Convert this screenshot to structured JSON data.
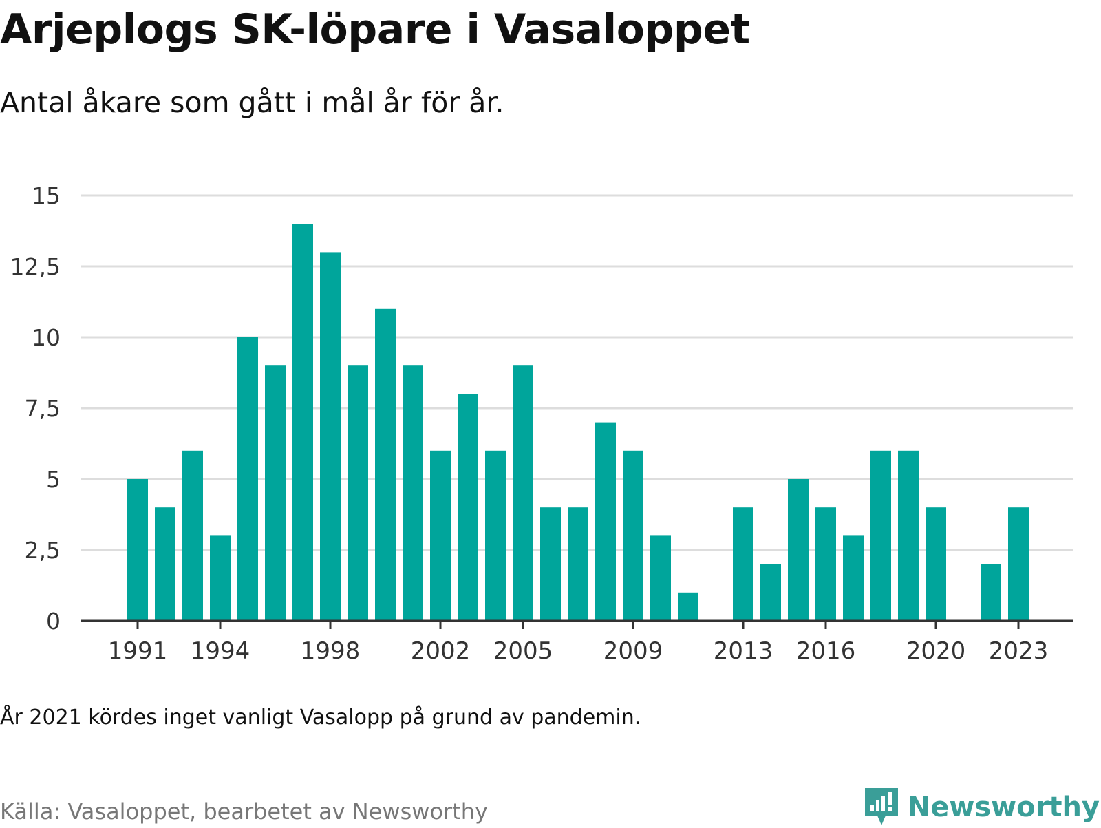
{
  "title": "Arjeplogs SK-löpare i Vasaloppet",
  "subtitle": "Antal åkare som gått i mål år för år.",
  "note": "År 2021 kördes inget vanligt Vasalopp på grund av pandemin.",
  "source": "Källa: Vasaloppet, bearbetet av Newsworthy",
  "brand": {
    "name": "Newsworthy",
    "icon": "newsworthy-logo-icon",
    "color": "#3a9e98"
  },
  "colors": {
    "bar": "#00a59b",
    "grid": "#dddddd",
    "axis": "#333333"
  },
  "chart_data": {
    "type": "bar",
    "x": [
      1991,
      1992,
      1993,
      1994,
      1995,
      1996,
      1997,
      1998,
      1999,
      2000,
      2001,
      2002,
      2003,
      2004,
      2005,
      2006,
      2007,
      2008,
      2009,
      2010,
      2011,
      2012,
      2013,
      2014,
      2015,
      2016,
      2017,
      2018,
      2019,
      2020,
      2021,
      2022,
      2023
    ],
    "values": [
      5,
      4,
      6,
      3,
      10,
      9,
      14,
      13,
      9,
      11,
      9,
      6,
      8,
      6,
      9,
      4,
      4,
      7,
      6,
      3,
      1,
      0,
      4,
      2,
      5,
      4,
      3,
      6,
      6,
      4,
      0,
      2,
      4
    ],
    "x_ticks": [
      "1991",
      "1994",
      "1998",
      "2002",
      "2005",
      "2009",
      "2013",
      "2016",
      "2020",
      "2023"
    ],
    "y_ticks": [
      "0",
      "2,5",
      "5",
      "7,5",
      "10",
      "12,5",
      "15"
    ],
    "ylim": [
      0,
      15
    ],
    "grid": true,
    "xlabel": "",
    "ylabel": ""
  }
}
